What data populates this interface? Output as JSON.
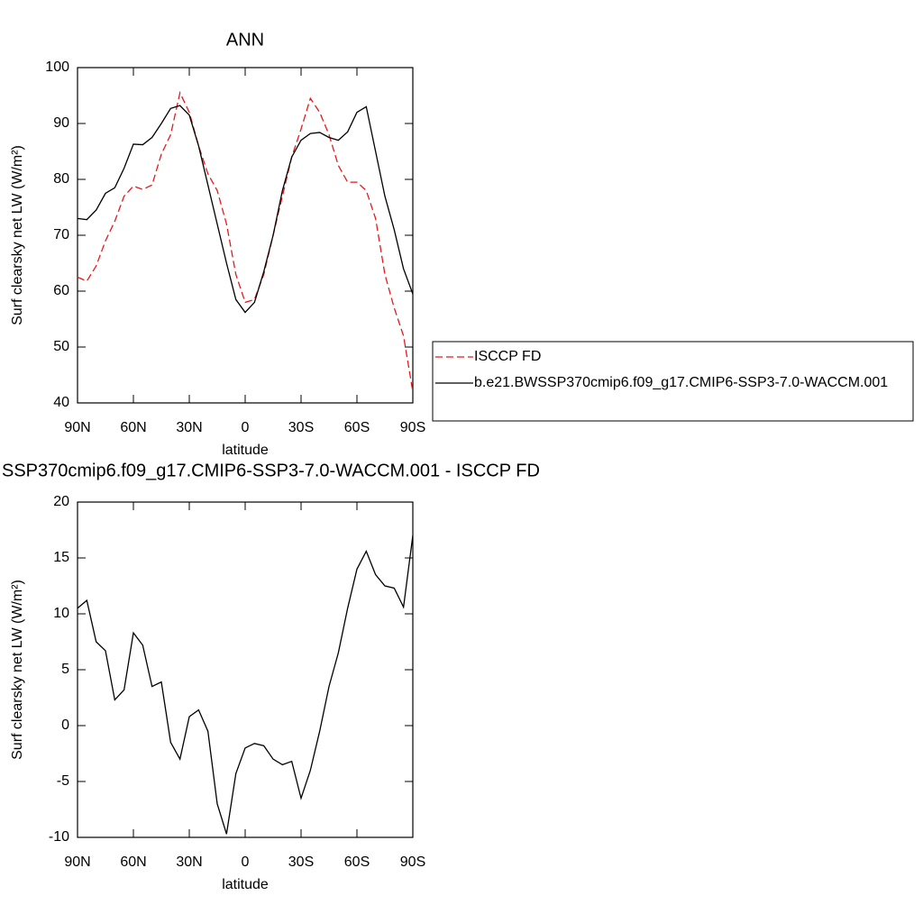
{
  "chart_data": [
    {
      "type": "line",
      "title": "ANN",
      "xlabel": "latitude",
      "ylabel": "Surf clearsky net LW (W/m²)",
      "x": [
        90,
        85,
        80,
        75,
        70,
        65,
        60,
        55,
        50,
        45,
        40,
        35,
        30,
        25,
        20,
        15,
        10,
        5,
        0,
        -5,
        -10,
        -15,
        -20,
        -25,
        -30,
        -35,
        -40,
        -45,
        -50,
        -55,
        -60,
        -65,
        -70,
        -75,
        -80,
        -85,
        -90
      ],
      "series": [
        {
          "name": "ISCCP FD",
          "color": "#e41a1c",
          "line_style": "dashed",
          "values": [
            62.5,
            61.8,
            64.5,
            69,
            72.5,
            77,
            78.8,
            78.2,
            79,
            84.5,
            88,
            95.5,
            92,
            86,
            81,
            78,
            72,
            63,
            58,
            58.5,
            63,
            70,
            77,
            84,
            89,
            94.5,
            92,
            88,
            82.5,
            79.5,
            79.5,
            78,
            73,
            63,
            57,
            52,
            42
          ]
        },
        {
          "name": "b.e21.BWSSP370cmip6.f09_g17.CMIP6-SSP3-7.0-WACCM.001",
          "color": "#000000",
          "line_style": "solid",
          "values": [
            73,
            72.8,
            74.5,
            77.5,
            78.5,
            82,
            86.3,
            86.2,
            87.5,
            90,
            92.7,
            93.2,
            91.5,
            86,
            79,
            72,
            65,
            58.5,
            56.2,
            58,
            63.5,
            70,
            78,
            84,
            87,
            88.2,
            88.4,
            87.5,
            87,
            88.5,
            92,
            93,
            85,
            77,
            71,
            64,
            59.5
          ]
        }
      ],
      "xlim": [
        90,
        -90
      ],
      "xticks": [
        {
          "value": 90,
          "label": "90N"
        },
        {
          "value": 60,
          "label": "60N"
        },
        {
          "value": 30,
          "label": "30N"
        },
        0,
        {
          "value": -30,
          "label": "30S"
        },
        {
          "value": -60,
          "label": "60S"
        },
        {
          "value": -90,
          "label": "90S"
        }
      ],
      "ylim": [
        40,
        100
      ],
      "yticks": [
        40,
        50,
        60,
        70,
        80,
        90,
        100
      ],
      "legend": "right"
    },
    {
      "type": "line",
      "title": "SSP370cmip6.f09_g17.CMIP6-SSP3-7.0-WACCM.001 - ISCCP FD",
      "xlabel": "latitude",
      "ylabel": "Surf clearsky net LW (W/m²)",
      "x": [
        90,
        85,
        80,
        75,
        70,
        65,
        60,
        55,
        50,
        45,
        40,
        35,
        30,
        25,
        20,
        15,
        10,
        5,
        0,
        -5,
        -10,
        -15,
        -20,
        -25,
        -30,
        -35,
        -40,
        -45,
        -50,
        -55,
        -60,
        -65,
        -70,
        -75,
        -80,
        -85,
        -90
      ],
      "values": [
        10.5,
        11.2,
        7.5,
        6.7,
        2.3,
        3.2,
        8.3,
        7.2,
        3.5,
        3.9,
        -1.5,
        -3,
        0.8,
        1.4,
        -0.5,
        -7,
        -9.7,
        -4.3,
        -2,
        -1.6,
        -1.8,
        -3,
        -3.5,
        -3.2,
        -6.5,
        -4,
        -0.5,
        3.5,
        6.5,
        10.5,
        14,
        15.6,
        13.5,
        12.5,
        12.3,
        10.6,
        17
      ],
      "color": "#000000",
      "xlim": [
        90,
        -90
      ],
      "xticks": [
        {
          "value": 90,
          "label": "90N"
        },
        {
          "value": 60,
          "label": "60N"
        },
        {
          "value": 30,
          "label": "30N"
        },
        0,
        {
          "value": -30,
          "label": "30S"
        },
        {
          "value": -60,
          "label": "60S"
        },
        {
          "value": -90,
          "label": "90S"
        }
      ],
      "ylim": [
        -10,
        20
      ],
      "yticks": [
        -10,
        -5,
        0,
        5,
        10,
        15,
        20
      ]
    }
  ]
}
